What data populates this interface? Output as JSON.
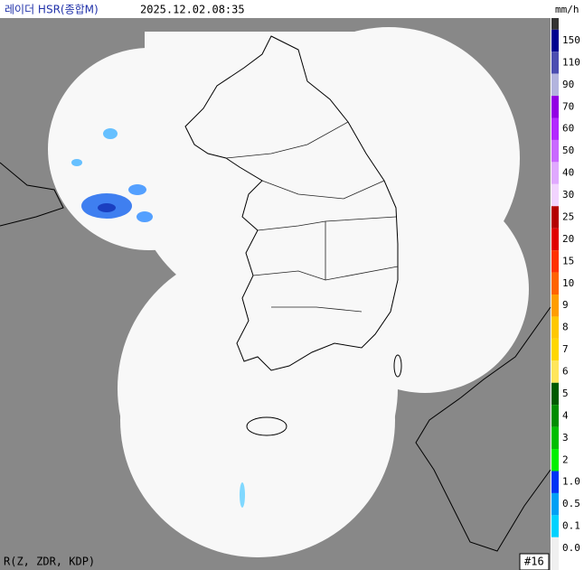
{
  "header": {
    "title": "레이더 HSR(종합M)",
    "timestamp": "2025.12.02.08:35"
  },
  "legend": {
    "unit": "mm/h",
    "labels": [
      "150",
      "110",
      "90",
      "70",
      "60",
      "50",
      "40",
      "30",
      "25",
      "20",
      "15",
      "10",
      "9",
      "8",
      "7",
      "6",
      "5",
      "4",
      "3",
      "2",
      "1.0",
      "0.5",
      "0.1",
      "0.0"
    ],
    "top_color": "#333333",
    "colors": [
      "#000390",
      "#4c4eb1",
      "#b3b4de",
      "#9300e4",
      "#b329ff",
      "#c969ff",
      "#e0a9ff",
      "#f2d4ff",
      "#b40000",
      "#e00000",
      "#ff3200",
      "#ff6300",
      "#ff9d00",
      "#ffc800",
      "#ffd700",
      "#ffe65c",
      "#005a00",
      "#008c00",
      "#00be00",
      "#00f000",
      "#0033f5",
      "#00a0f5",
      "#00d2ff",
      "#f0f0f0"
    ]
  },
  "footer": {
    "method": "R(Z, ZDR, KDP)",
    "badge": "#16"
  }
}
